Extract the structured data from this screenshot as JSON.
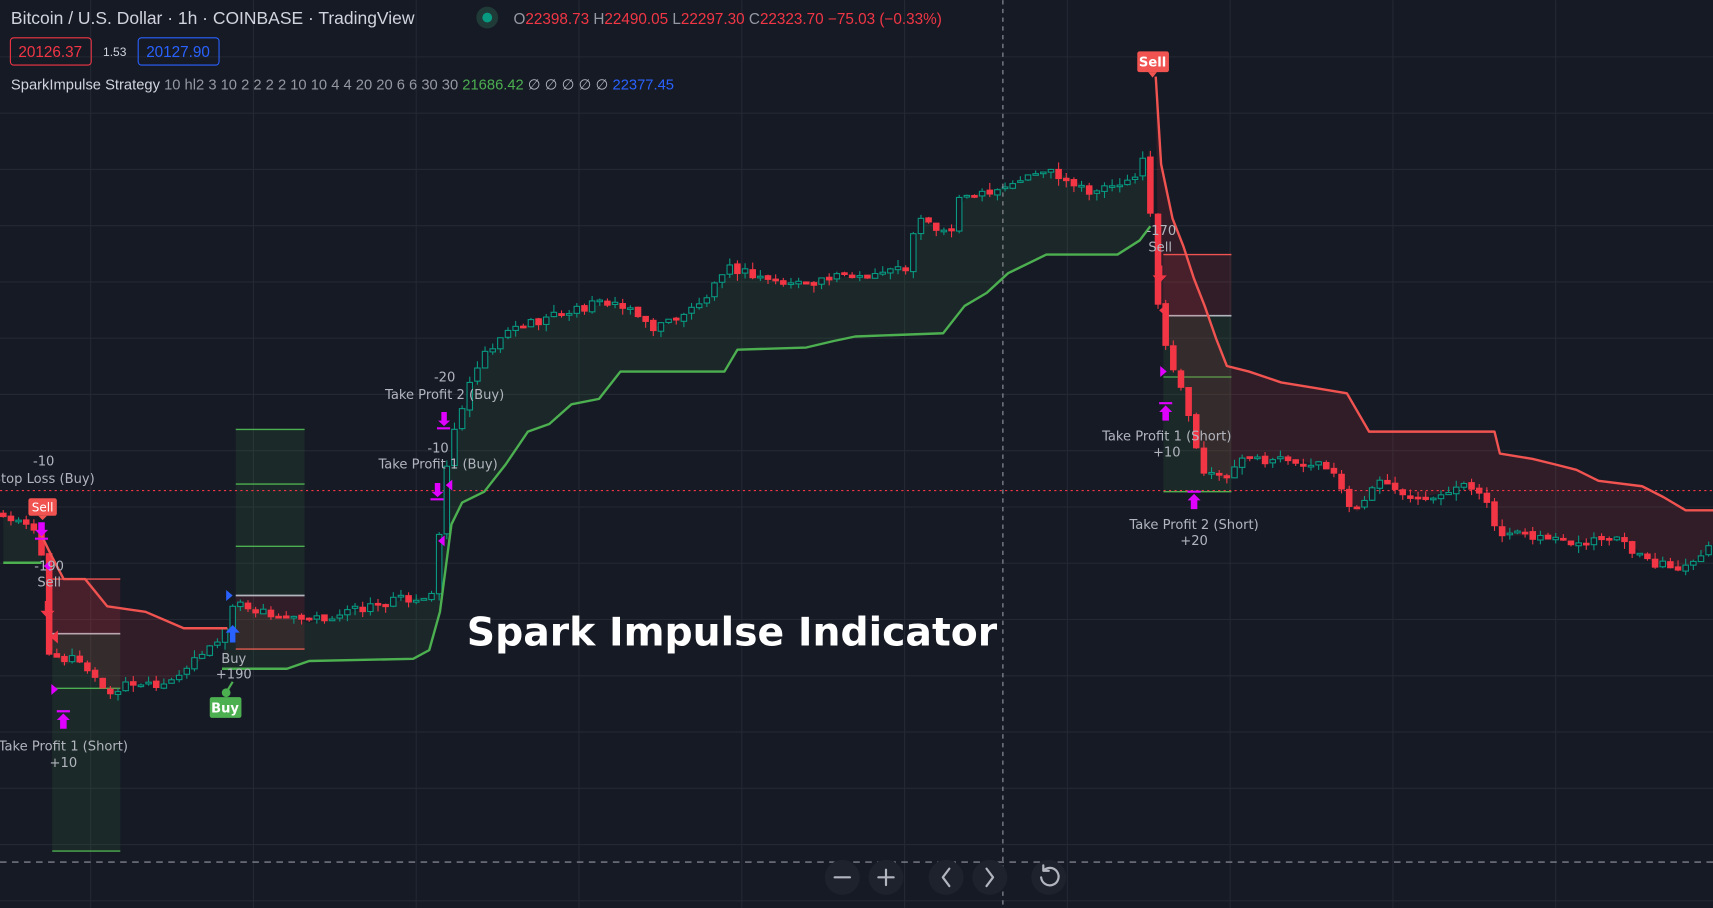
{
  "header": {
    "symbol_title": "Bitcoin / U.S. Dollar · 1h · COINBASE · TradingView",
    "ohlc": {
      "o_label": "O",
      "o": "22398.73",
      "h_label": "H",
      "h": "22490.05",
      "l_label": "L",
      "l": "22297.30",
      "c_label": "C",
      "c": "22323.70",
      "change": "−75.03 (−0.33%)"
    },
    "sell_price": "20126.37",
    "spread": "1.53",
    "buy_price": "20127.90",
    "market_status": "market-open-dot"
  },
  "indicator": {
    "name": "SparkImpulse Strategy",
    "params": "10 hl2 3 10 2 2 2 2 10 10 4 4 20 20 6 6 30 30",
    "value_green": "21686.42",
    "empties": "∅ ∅ ∅ ∅ ∅",
    "value_blue": "22377.45"
  },
  "watermark": "Spark Impulse Indicator",
  "colors": {
    "background": "#161a25",
    "up": "#089981",
    "down": "#f23645",
    "long_stop": "#4caf50",
    "short_stop": "#f05350",
    "marker": "#e000ff",
    "blue": "#2962ff"
  },
  "labels": {
    "sl_buy_amount": "-10",
    "sl_buy": "Stop Loss (Buy)",
    "sell1_amount": "-190",
    "sell1": "Sell",
    "tp1_short1": "Take Profit 1 (Short)",
    "tp1_short1_amount": "+10",
    "buy1": "Buy",
    "buy1_amount": "+190",
    "buy_badge": "Buy",
    "tp2_buy_amount": "-20",
    "tp2_buy": "Take Profit 2 (Buy)",
    "tp1_buy_amount": "-10",
    "tp1_buy": "Take Profit 1 (Buy)",
    "sell_badge_top": "Sell",
    "sell_badge_left": "Sell",
    "sell2_amount": "-170",
    "sell2": "Sell",
    "tp1_short2": "Take Profit 1 (Short)",
    "tp1_short2_amount": "+10",
    "tp2_short2": "Take Profit 2 (Short)",
    "tp2_short2_amount": "+20"
  },
  "nav": {
    "zoom_out": "minus",
    "zoom_in": "plus",
    "scroll_left": "chevron-left",
    "scroll_right": "chevron-right",
    "reset": "reset"
  },
  "chart_data": {
    "type": "candlestick",
    "symbol": "BTCUSD",
    "interval": "1h",
    "current_price": 20127,
    "crosshair_bar": 131,
    "price_path": [
      [
        0,
        19958
      ],
      [
        2.9,
        19878
      ],
      [
        5.4,
        19797
      ],
      [
        6,
        18993
      ],
      [
        7.9,
        18833
      ],
      [
        10,
        18913
      ],
      [
        14.3,
        18632
      ],
      [
        17.1,
        18712
      ],
      [
        21.4,
        18712
      ],
      [
        25.7,
        18873
      ],
      [
        29.3,
        19074
      ],
      [
        30.7,
        19315
      ],
      [
        34.3,
        19235
      ],
      [
        40,
        19154
      ],
      [
        45.7,
        19235
      ],
      [
        51.4,
        19315
      ],
      [
        56.4,
        19355
      ],
      [
        57.4,
        19717
      ],
      [
        58.6,
        20360
      ],
      [
        60,
        20682
      ],
      [
        62.9,
        21084
      ],
      [
        67.1,
        21325
      ],
      [
        74.3,
        21446
      ],
      [
        80,
        21526
      ],
      [
        85.7,
        21325
      ],
      [
        91.4,
        21486
      ],
      [
        95.7,
        21767
      ],
      [
        102.9,
        21647
      ],
      [
        108.6,
        21687
      ],
      [
        114.3,
        21727
      ],
      [
        118.6,
        21767
      ],
      [
        120,
        22129
      ],
      [
        124.3,
        22008
      ],
      [
        125.7,
        22290
      ],
      [
        131.4,
        22370
      ],
      [
        137.1,
        22491
      ],
      [
        142.9,
        22330
      ],
      [
        148.6,
        22410
      ],
      [
        150,
        22652
      ],
      [
        151.1,
        21647
      ],
      [
        152.1,
        21245
      ],
      [
        153.6,
        21004
      ],
      [
        155.7,
        20682
      ],
      [
        157.1,
        20280
      ],
      [
        160,
        20199
      ],
      [
        162.9,
        20360
      ],
      [
        168.6,
        20360
      ],
      [
        174.3,
        20280
      ],
      [
        177.1,
        19958
      ],
      [
        180,
        20199
      ],
      [
        185.7,
        20079
      ],
      [
        191.4,
        20159
      ],
      [
        194.3,
        20119
      ],
      [
        195.7,
        19797
      ],
      [
        200,
        19797
      ],
      [
        205.7,
        19757
      ],
      [
        211.4,
        19797
      ],
      [
        215.7,
        19596
      ],
      [
        220,
        19556
      ],
      [
        224,
        19757
      ]
    ],
    "long_stop": [
      [
        [
          0,
          19596
        ],
        [
          5,
          19596
        ]
      ],
      [
        [
          28.6,
          18816
        ],
        [
          37.1,
          18816
        ],
        [
          40,
          18873
        ],
        [
          53.6,
          18889
        ],
        [
          55.7,
          18953
        ],
        [
          57.1,
          19235
        ],
        [
          58.6,
          19878
        ],
        [
          60,
          20039
        ],
        [
          62.9,
          20119
        ],
        [
          65.7,
          20320
        ],
        [
          68.6,
          20561
        ],
        [
          71.4,
          20617
        ],
        [
          74.3,
          20762
        ],
        [
          77.9,
          20802
        ],
        [
          80.7,
          21003
        ],
        [
          94.3,
          21003
        ],
        [
          96,
          21164
        ],
        [
          105,
          21180
        ],
        [
          108.6,
          21228
        ],
        [
          111.4,
          21261
        ],
        [
          122.9,
          21285
        ],
        [
          125.7,
          21486
        ],
        [
          128.6,
          21582
        ],
        [
          131.4,
          21727
        ],
        [
          136.4,
          21864
        ],
        [
          145.7,
          21864
        ],
        [
          148.6,
          21968
        ],
        [
          150,
          22073
        ]
      ]
    ],
    "short_stop": [
      [
        [
          5,
          19797
        ],
        [
          6.4,
          19637
        ],
        [
          7.9,
          19476
        ],
        [
          10.7,
          19476
        ],
        [
          13.6,
          19275
        ],
        [
          18.6,
          19235
        ],
        [
          23.6,
          19114
        ],
        [
          29.3,
          19114
        ]
      ],
      [
        [
          150.7,
          23174
        ],
        [
          151.4,
          22531
        ],
        [
          152.9,
          22129
        ],
        [
          154.3,
          21928
        ],
        [
          155.7,
          21687
        ],
        [
          157.1,
          21486
        ],
        [
          158.6,
          21245
        ],
        [
          160,
          21044
        ],
        [
          162.9,
          21003
        ],
        [
          167.1,
          20923
        ],
        [
          171.4,
          20883
        ],
        [
          175.7,
          20843
        ],
        [
          178.6,
          20561
        ],
        [
          195,
          20561
        ],
        [
          195.7,
          20400
        ],
        [
          200,
          20360
        ],
        [
          202.9,
          20320
        ],
        [
          205.7,
          20280
        ],
        [
          208.6,
          20199
        ],
        [
          214.3,
          20159
        ],
        [
          217.1,
          20079
        ],
        [
          220,
          19982
        ],
        [
          224,
          19982
        ]
      ]
    ],
    "trades": [
      {
        "side": "short",
        "from_bar": 6.4,
        "to_bar": 15.3,
        "stop": 19476,
        "entry": 19074,
        "targets": [
          18672,
          17474
        ]
      },
      {
        "side": "long",
        "from_bar": 30.4,
        "to_bar": 39.4,
        "stop": 18961,
        "entry": 19355,
        "targets": [
          19717,
          20175,
          20577
        ]
      },
      {
        "side": "short",
        "from_bar": 151.7,
        "to_bar": 160.6,
        "stop": 21864,
        "entry": 21414,
        "targets": [
          20963,
          20119
        ]
      }
    ]
  }
}
